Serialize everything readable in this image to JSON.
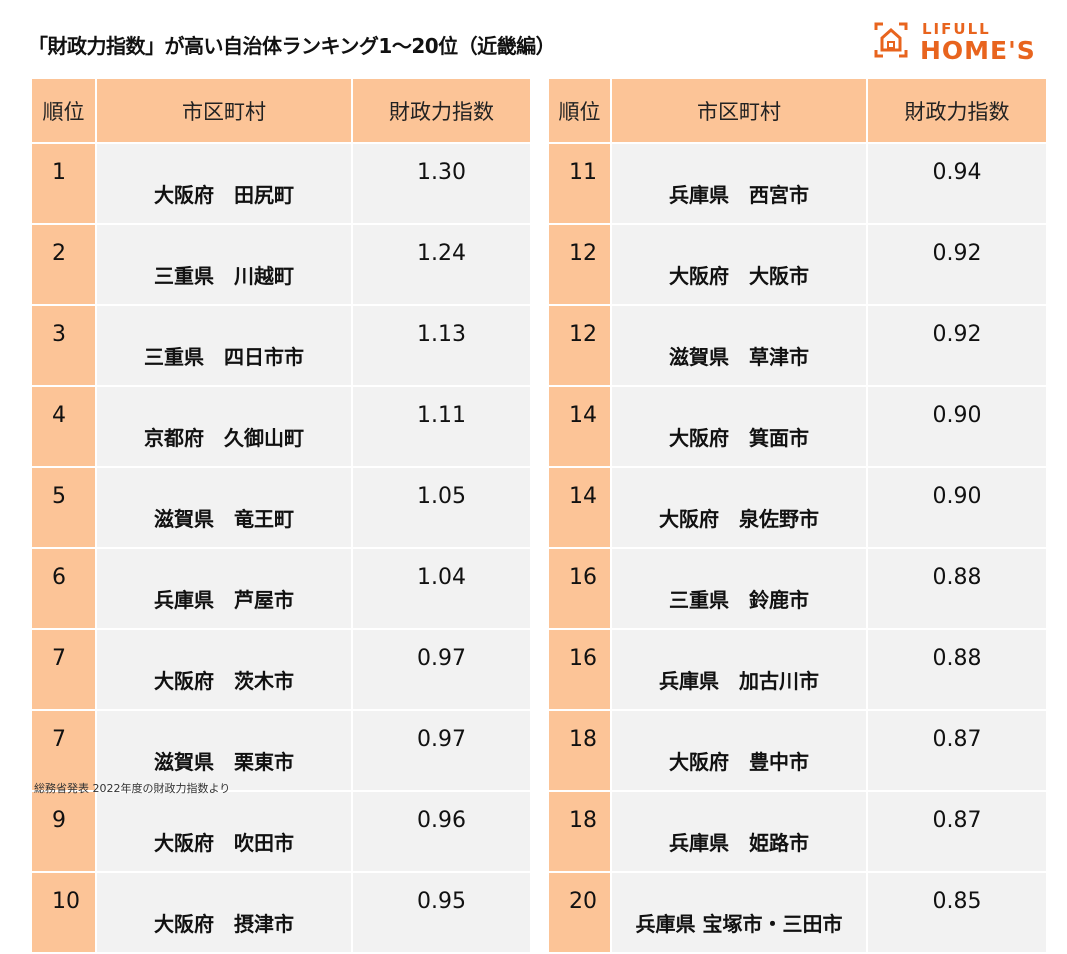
{
  "title": "「財政力指数」が高い自治体ランキング1～20位（近畿編）",
  "logo": {
    "line1": "LIFULL",
    "line2": "HOME'S",
    "color": "#e8641e"
  },
  "headers": {
    "rank": "順位",
    "name": "市区町村",
    "value": "財政力指数"
  },
  "colors": {
    "header": "#fcc497",
    "cell": "#f2f2f2"
  },
  "left": [
    {
      "rank": "1",
      "name": "大阪府　田尻町",
      "value": "1.30"
    },
    {
      "rank": "2",
      "name": "三重県　川越町",
      "value": "1.24"
    },
    {
      "rank": "3",
      "name": "三重県　四日市市",
      "value": "1.13"
    },
    {
      "rank": "4",
      "name": "京都府　久御山町",
      "value": "1.11"
    },
    {
      "rank": "5",
      "name": "滋賀県　竜王町",
      "value": "1.05"
    },
    {
      "rank": "6",
      "name": "兵庫県　芦屋市",
      "value": "1.04"
    },
    {
      "rank": "7",
      "name": "大阪府　茨木市",
      "value": "0.97"
    },
    {
      "rank": "7",
      "name": "滋賀県　栗東市",
      "value": "0.97"
    },
    {
      "rank": "9",
      "name": "大阪府　吹田市",
      "value": "0.96"
    },
    {
      "rank": "10",
      "name": "大阪府　摂津市",
      "value": "0.95"
    }
  ],
  "right": [
    {
      "rank": "11",
      "name": "兵庫県　西宮市",
      "value": "0.94"
    },
    {
      "rank": "12",
      "name": "大阪府　大阪市",
      "value": "0.92"
    },
    {
      "rank": "12",
      "name": "滋賀県　草津市",
      "value": "0.92"
    },
    {
      "rank": "14",
      "name": "大阪府　箕面市",
      "value": "0.90"
    },
    {
      "rank": "14",
      "name": "大阪府　泉佐野市",
      "value": "0.90"
    },
    {
      "rank": "16",
      "name": "三重県　鈴鹿市",
      "value": "0.88"
    },
    {
      "rank": "16",
      "name": "兵庫県　加古川市",
      "value": "0.88"
    },
    {
      "rank": "18",
      "name": "大阪府　豊中市",
      "value": "0.87"
    },
    {
      "rank": "18",
      "name": "兵庫県　姫路市",
      "value": "0.87"
    },
    {
      "rank": "20",
      "name": "兵庫県 宝塚市・三田市",
      "value": "0.85"
    }
  ],
  "note": "総務省発表 2022年度の財政力指数より"
}
